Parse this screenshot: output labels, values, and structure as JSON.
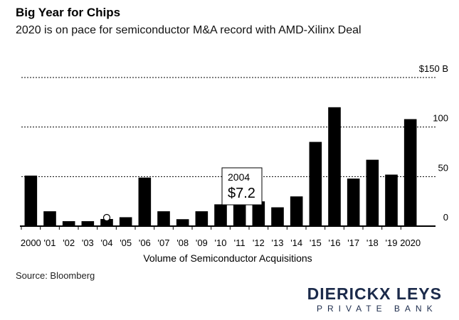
{
  "header": {
    "title": "Big Year for Chips",
    "subtitle": "2020 is on pace for semiconductor M&A record with AMD-Xilinx Deal"
  },
  "source": "Source: Bloomberg",
  "brand": {
    "name": "DIERICKX LEYS",
    "sub": "PRIVATE BANK",
    "color": "#1b2a4a"
  },
  "chart_data": {
    "type": "bar",
    "categories": [
      "2000",
      "'01",
      "'02",
      "'03",
      "'04",
      "'05",
      "'06",
      "'07",
      "'08",
      "'09",
      "'10",
      "'11",
      "'12",
      "'13",
      "'14",
      "'15",
      "'16",
      "'17",
      "'18",
      "'19",
      "2020"
    ],
    "values": [
      51,
      15,
      5,
      5,
      7.2,
      9,
      49,
      15,
      7,
      15,
      22,
      30,
      25,
      19,
      30,
      85,
      120,
      48,
      67,
      52,
      108
    ],
    "title": "Big Year for Chips",
    "subtitle": "2020 is on pace for semiconductor M&A record with AMD-Xilinx Deal",
    "xlabel": "Volume of Semiconductor Acquisitions",
    "ylabel": "",
    "ylim": [
      0,
      150
    ],
    "y_ticks": [
      0,
      50,
      100,
      150
    ],
    "y_tick_labels": [
      "0",
      "50",
      "100",
      "$150 B"
    ],
    "grid": true,
    "bar_color": "#000000",
    "annotation": {
      "category": "'04",
      "year": "2004",
      "value_label": "$7.2"
    }
  }
}
